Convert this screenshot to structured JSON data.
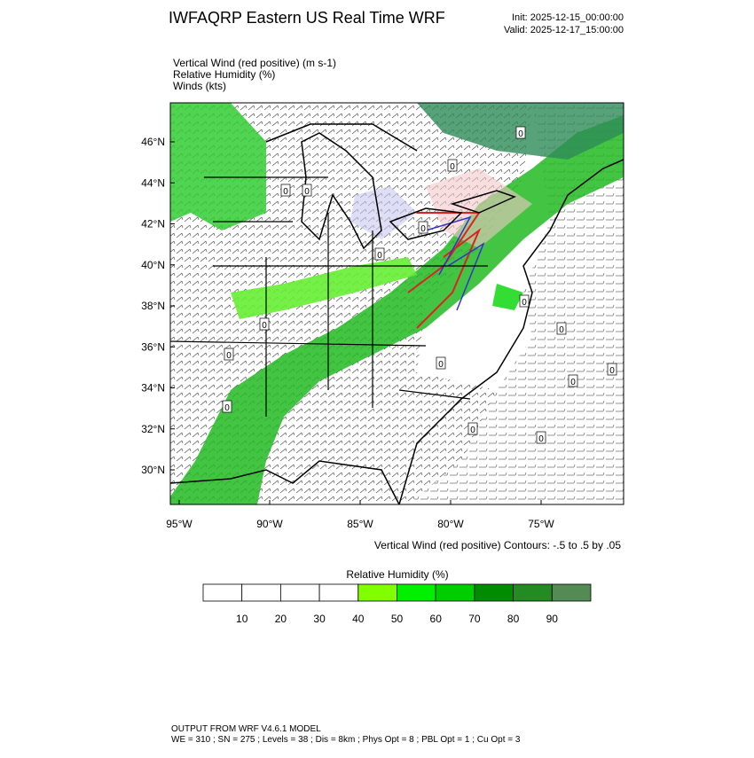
{
  "header": {
    "title": "IWFAQRP Eastern US Real Time WRF",
    "init": "Init: 2025-12-15_00:00:00",
    "valid": "Valid: 2025-12-17_15:00:00"
  },
  "fields": [
    "Vertical Wind (red positive)   (m s-1)",
    "Relative Humidity   (%)",
    "Winds   (kts)"
  ],
  "map": {
    "lat_labels": [
      "46°N",
      "44°N",
      "42°N",
      "40°N",
      "38°N",
      "36°N",
      "34°N",
      "32°N",
      "30°N"
    ],
    "lon_labels": [
      "95°W",
      "90°W",
      "85°W",
      "80°W",
      "75°W"
    ],
    "contour_labels": [
      "0",
      "0",
      "0",
      "0",
      "0",
      "0",
      "0",
      "0",
      "0",
      "0",
      "0",
      "0",
      "0",
      "0",
      "0",
      "0"
    ]
  },
  "contour_note": "Vertical Wind (red positive) Contours: -.5 to .5 by .05",
  "colorbar": {
    "title": "Relative Humidity   (%)",
    "labels": [
      10,
      20,
      30,
      40,
      50,
      60,
      70,
      80,
      90
    ],
    "colors": [
      "#ffffff",
      "#ffffff",
      "#ffffff",
      "#ffffff",
      "#80ff00",
      "#00f000",
      "#00cd00",
      "#008b00",
      "#228b22",
      "#548b54"
    ]
  },
  "footer": [
    "OUTPUT FROM WRF V4.6.1 MODEL",
    "WE = 310 ; SN = 275 ; Levels = 38 ; Dis = 8km ; Phys Opt = 8 ; PBL Opt = 1 ; Cu Opt = 3"
  ]
}
